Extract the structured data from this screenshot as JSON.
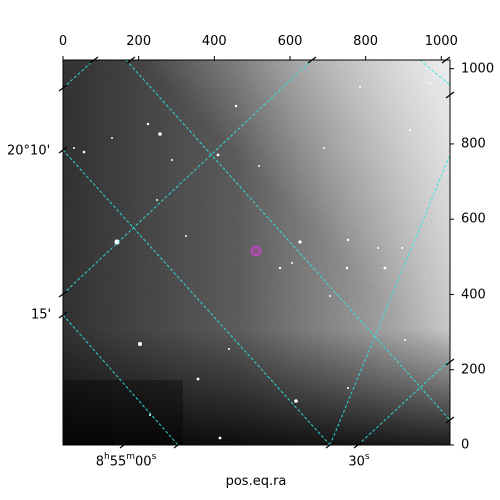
{
  "image": {
    "kind": "grayscale astronomical sky image",
    "colors": {
      "grid": "#2ee6e6",
      "marker": "#d040d0",
      "frame": "#000000",
      "dark_sky": "#111111",
      "bright_sky": "#f0f0f0"
    },
    "marker_icon": "circle-marker"
  },
  "pixel_axis_top": {
    "ticks": [
      "0",
      "200",
      "400",
      "600",
      "800",
      "1000"
    ],
    "values": [
      0,
      200,
      400,
      600,
      800,
      1000
    ],
    "range": [
      0,
      1023
    ]
  },
  "pixel_axis_right": {
    "ticks": [
      "0",
      "200",
      "400",
      "600",
      "800",
      "1000"
    ],
    "values": [
      0,
      200,
      400,
      600,
      800,
      1000
    ],
    "range": [
      0,
      1023
    ]
  },
  "ra_axis": {
    "title": "pos.eq.ra",
    "labels": [
      {
        "h": "8",
        "hs": "h",
        "m": "55",
        "ms": "m",
        "s": "00",
        "ss": "s"
      },
      {
        "h": "",
        "hs": "",
        "m": "",
        "ms": "",
        "s": "30",
        "ss": "s"
      }
    ]
  },
  "dec_axis": {
    "labels": [
      "20°10'",
      "15'"
    ]
  }
}
